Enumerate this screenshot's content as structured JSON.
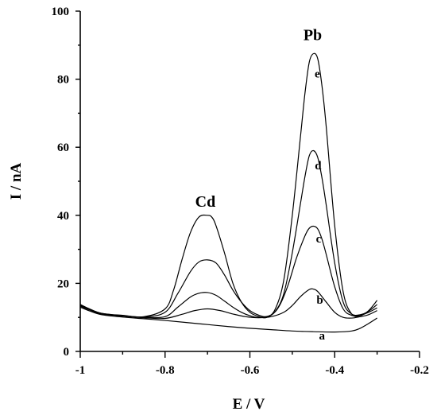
{
  "chart_data": {
    "type": "line",
    "xlabel": "E / V",
    "ylabel": "I / nA",
    "xlim": [
      -1,
      -0.2
    ],
    "ylim": [
      0,
      100
    ],
    "grid": false,
    "x_ticks": [
      -1,
      -0.8,
      -0.6,
      -0.4,
      -0.2
    ],
    "x_tick_labels": [
      "-1",
      "-0.8",
      "-0.6",
      "-0.4",
      "-0.2"
    ],
    "y_ticks": [
      0,
      20,
      40,
      60,
      80,
      100
    ],
    "y_tick_labels": [
      "0",
      "20",
      "40",
      "60",
      "80",
      "100"
    ],
    "annotations": [
      {
        "text": "Cd",
        "x": -0.705,
        "y": 42.5
      },
      {
        "text": "Pb",
        "x": -0.452,
        "y": 91.5
      }
    ],
    "series": [
      {
        "label": "a",
        "label_pos": [
          -0.43,
          3.5
        ],
        "x": [
          -1.0,
          -0.98,
          -0.95,
          -0.9,
          -0.85,
          -0.8,
          -0.75,
          -0.7,
          -0.65,
          -0.6,
          -0.55,
          -0.5,
          -0.45,
          -0.4,
          -0.36,
          -0.34,
          -0.32,
          -0.3
        ],
        "y": [
          13.0,
          12.0,
          10.8,
          10.1,
          9.6,
          9.1,
          8.5,
          7.9,
          7.3,
          6.8,
          6.4,
          6.0,
          5.8,
          5.7,
          6.0,
          6.8,
          8.2,
          9.8
        ]
      },
      {
        "label": "b",
        "label_pos": [
          -0.435,
          14.0
        ],
        "x": [
          -1.0,
          -0.98,
          -0.95,
          -0.9,
          -0.85,
          -0.8,
          -0.76,
          -0.73,
          -0.7,
          -0.67,
          -0.64,
          -0.61,
          -0.58,
          -0.55,
          -0.52,
          -0.5,
          -0.48,
          -0.46,
          -0.45,
          -0.44,
          -0.42,
          -0.4,
          -0.38,
          -0.36,
          -0.34,
          -0.32,
          -0.3
        ],
        "y": [
          13.3,
          12.3,
          11.0,
          10.4,
          9.9,
          9.7,
          10.9,
          12.0,
          12.5,
          12.0,
          11.0,
          10.2,
          9.9,
          10.2,
          11.5,
          13.5,
          16.2,
          18.2,
          18.3,
          17.6,
          14.5,
          11.5,
          10.0,
          9.8,
          10.2,
          10.8,
          12.0
        ]
      },
      {
        "label": "c",
        "label_pos": [
          -0.438,
          32.0
        ],
        "x": [
          -1.0,
          -0.98,
          -0.95,
          -0.9,
          -0.85,
          -0.8,
          -0.77,
          -0.74,
          -0.72,
          -0.7,
          -0.68,
          -0.66,
          -0.64,
          -0.62,
          -0.6,
          -0.58,
          -0.55,
          -0.53,
          -0.51,
          -0.49,
          -0.47,
          -0.46,
          -0.45,
          -0.44,
          -0.43,
          -0.42,
          -0.4,
          -0.38,
          -0.36,
          -0.34,
          -0.32,
          -0.3
        ],
        "y": [
          13.4,
          12.4,
          11.1,
          10.5,
          10.0,
          10.2,
          13.0,
          16.0,
          17.1,
          17.3,
          16.5,
          14.8,
          13.0,
          11.5,
          10.5,
          10.0,
          10.7,
          13.5,
          19.5,
          27.5,
          34.0,
          36.2,
          36.8,
          36.0,
          33.0,
          28.5,
          19.0,
          12.5,
          10.6,
          10.6,
          11.5,
          12.8
        ]
      },
      {
        "label": "d",
        "label_pos": [
          -0.439,
          53.5
        ],
        "x": [
          -1.0,
          -0.98,
          -0.95,
          -0.9,
          -0.85,
          -0.8,
          -0.77,
          -0.74,
          -0.72,
          -0.7,
          -0.68,
          -0.66,
          -0.64,
          -0.62,
          -0.6,
          -0.58,
          -0.56,
          -0.54,
          -0.52,
          -0.5,
          -0.48,
          -0.47,
          -0.46,
          -0.45,
          -0.44,
          -0.43,
          -0.42,
          -0.4,
          -0.38,
          -0.36,
          -0.34,
          -0.32,
          -0.3
        ],
        "y": [
          13.6,
          12.5,
          11.2,
          10.5,
          10.1,
          11.5,
          17.0,
          23.5,
          26.3,
          26.9,
          26.0,
          22.5,
          18.0,
          14.5,
          12.0,
          10.7,
          10.2,
          11.8,
          17.0,
          29.0,
          44.0,
          51.5,
          57.5,
          59.0,
          57.0,
          51.0,
          43.0,
          26.0,
          14.5,
          11.0,
          10.8,
          11.8,
          13.8
        ]
      },
      {
        "label": "e",
        "label_pos": [
          -0.441,
          80.5
        ],
        "x": [
          -1.0,
          -0.98,
          -0.95,
          -0.9,
          -0.85,
          -0.8,
          -0.78,
          -0.76,
          -0.74,
          -0.72,
          -0.7,
          -0.69,
          -0.68,
          -0.66,
          -0.64,
          -0.62,
          -0.6,
          -0.58,
          -0.56,
          -0.54,
          -0.52,
          -0.5,
          -0.48,
          -0.47,
          -0.46,
          -0.45,
          -0.44,
          -0.43,
          -0.42,
          -0.4,
          -0.38,
          -0.36,
          -0.34,
          -0.32,
          -0.3
        ],
        "y": [
          13.8,
          12.6,
          11.2,
          10.6,
          10.2,
          12.5,
          18.0,
          27.0,
          35.0,
          39.5,
          40.0,
          39.5,
          37.0,
          29.0,
          20.0,
          14.5,
          11.5,
          10.3,
          10.0,
          12.5,
          21.0,
          40.0,
          64.0,
          76.0,
          85.0,
          87.5,
          86.0,
          78.0,
          66.0,
          37.0,
          17.5,
          11.0,
          10.5,
          12.0,
          15.0
        ]
      }
    ]
  }
}
